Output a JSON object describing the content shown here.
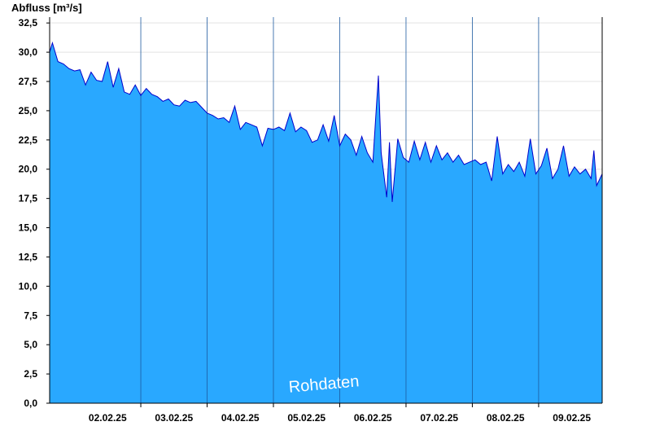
{
  "chart_data": {
    "type": "area",
    "ylabel": "Abfluss [m³/s]",
    "ylim": [
      0,
      33
    ],
    "yticks": [
      "0,0",
      "2,5",
      "5,0",
      "7,5",
      "10,0",
      "12,5",
      "15,0",
      "17,5",
      "20,0",
      "22,5",
      "25,0",
      "27,5",
      "30,0",
      "32,5"
    ],
    "ytick_values": [
      0,
      2.5,
      5,
      7.5,
      10,
      12.5,
      15,
      17.5,
      20,
      22.5,
      25,
      27.5,
      30,
      32.5
    ],
    "xlim": [
      "2025-02-01T15:00",
      "2025-02-09T23:00"
    ],
    "x_day_boundaries": [
      "2025-02-03T00:00",
      "2025-02-04T00:00",
      "2025-02-05T00:00",
      "2025-02-06T00:00",
      "2025-02-07T00:00",
      "2025-02-08T00:00",
      "2025-02-09T00:00"
    ],
    "xtick_labels": [
      {
        "date": "2025-02-02",
        "label": "02.02.25"
      },
      {
        "date": "2025-02-03",
        "label": "03.02.25"
      },
      {
        "date": "2025-02-04",
        "label": "04.02.25"
      },
      {
        "date": "2025-02-05",
        "label": "05.02.25"
      },
      {
        "date": "2025-02-06",
        "label": "06.02.25"
      },
      {
        "date": "2025-02-07",
        "label": "07.02.25"
      },
      {
        "date": "2025-02-08",
        "label": "08.02.25"
      },
      {
        "date": "2025-02-09",
        "label": "09.02.25"
      }
    ],
    "grid": true,
    "legend": "none",
    "fill_color": "#29A8FF",
    "line_color": "#0000CC",
    "annotation": "Rohdaten",
    "series": [
      {
        "points": [
          [
            "2025-02-01T15:00",
            30.0
          ],
          [
            "2025-02-01T16:00",
            30.8
          ],
          [
            "2025-02-01T18:00",
            29.2
          ],
          [
            "2025-02-01T20:00",
            29.0
          ],
          [
            "2025-02-01T22:00",
            28.6
          ],
          [
            "2025-02-02T00:00",
            28.4
          ],
          [
            "2025-02-02T02:00",
            28.5
          ],
          [
            "2025-02-02T04:00",
            27.2
          ],
          [
            "2025-02-02T06:00",
            28.3
          ],
          [
            "2025-02-02T08:00",
            27.6
          ],
          [
            "2025-02-02T10:00",
            27.5
          ],
          [
            "2025-02-02T12:00",
            29.2
          ],
          [
            "2025-02-02T14:00",
            27.0
          ],
          [
            "2025-02-02T16:00",
            28.6
          ],
          [
            "2025-02-02T18:00",
            26.6
          ],
          [
            "2025-02-02T20:00",
            26.4
          ],
          [
            "2025-02-02T22:00",
            27.2
          ],
          [
            "2025-02-03T00:00",
            26.3
          ],
          [
            "2025-02-03T02:00",
            26.9
          ],
          [
            "2025-02-03T04:00",
            26.4
          ],
          [
            "2025-02-03T06:00",
            26.2
          ],
          [
            "2025-02-03T08:00",
            25.8
          ],
          [
            "2025-02-03T10:00",
            26.0
          ],
          [
            "2025-02-03T12:00",
            25.5
          ],
          [
            "2025-02-03T14:00",
            25.4
          ],
          [
            "2025-02-03T16:00",
            25.9
          ],
          [
            "2025-02-03T18:00",
            25.7
          ],
          [
            "2025-02-03T20:00",
            25.8
          ],
          [
            "2025-02-03T22:00",
            25.3
          ],
          [
            "2025-02-04T00:00",
            24.8
          ],
          [
            "2025-02-04T02:00",
            24.6
          ],
          [
            "2025-02-04T04:00",
            24.3
          ],
          [
            "2025-02-04T06:00",
            24.4
          ],
          [
            "2025-02-04T08:00",
            24.0
          ],
          [
            "2025-02-04T10:00",
            25.4
          ],
          [
            "2025-02-04T12:00",
            23.4
          ],
          [
            "2025-02-04T14:00",
            24.0
          ],
          [
            "2025-02-04T16:00",
            23.8
          ],
          [
            "2025-02-04T18:00",
            23.6
          ],
          [
            "2025-02-04T20:00",
            22.0
          ],
          [
            "2025-02-04T22:00",
            23.5
          ],
          [
            "2025-02-05T00:00",
            23.4
          ],
          [
            "2025-02-05T02:00",
            23.6
          ],
          [
            "2025-02-05T04:00",
            23.3
          ],
          [
            "2025-02-05T06:00",
            24.8
          ],
          [
            "2025-02-05T08:00",
            23.2
          ],
          [
            "2025-02-05T10:00",
            23.6
          ],
          [
            "2025-02-05T12:00",
            23.3
          ],
          [
            "2025-02-05T14:00",
            22.3
          ],
          [
            "2025-02-05T16:00",
            22.5
          ],
          [
            "2025-02-05T18:00",
            23.8
          ],
          [
            "2025-02-05T20:00",
            22.4
          ],
          [
            "2025-02-05T22:00",
            24.6
          ],
          [
            "2025-02-06T00:00",
            22.0
          ],
          [
            "2025-02-06T02:00",
            23.0
          ],
          [
            "2025-02-06T04:00",
            22.5
          ],
          [
            "2025-02-06T06:00",
            21.2
          ],
          [
            "2025-02-06T08:00",
            22.8
          ],
          [
            "2025-02-06T10:00",
            21.4
          ],
          [
            "2025-02-06T12:00",
            20.6
          ],
          [
            "2025-02-06T14:00",
            28.0
          ],
          [
            "2025-02-06T15:00",
            21.4
          ],
          [
            "2025-02-06T17:00",
            17.6
          ],
          [
            "2025-02-06T18:00",
            22.3
          ],
          [
            "2025-02-06T19:00",
            17.2
          ],
          [
            "2025-02-06T21:00",
            22.6
          ],
          [
            "2025-02-06T23:00",
            21.0
          ],
          [
            "2025-02-07T01:00",
            20.6
          ],
          [
            "2025-02-07T03:00",
            22.4
          ],
          [
            "2025-02-07T05:00",
            20.8
          ],
          [
            "2025-02-07T07:00",
            22.3
          ],
          [
            "2025-02-07T09:00",
            20.6
          ],
          [
            "2025-02-07T11:00",
            22.0
          ],
          [
            "2025-02-07T13:00",
            20.8
          ],
          [
            "2025-02-07T15:00",
            21.4
          ],
          [
            "2025-02-07T17:00",
            20.6
          ],
          [
            "2025-02-07T19:00",
            21.2
          ],
          [
            "2025-02-07T21:00",
            20.4
          ],
          [
            "2025-02-07T23:00",
            20.6
          ],
          [
            "2025-02-08T01:00",
            20.8
          ],
          [
            "2025-02-08T03:00",
            20.4
          ],
          [
            "2025-02-08T05:00",
            20.6
          ],
          [
            "2025-02-08T07:00",
            19.0
          ],
          [
            "2025-02-08T09:00",
            22.8
          ],
          [
            "2025-02-08T11:00",
            19.6
          ],
          [
            "2025-02-08T13:00",
            20.4
          ],
          [
            "2025-02-08T15:00",
            19.8
          ],
          [
            "2025-02-08T17:00",
            20.6
          ],
          [
            "2025-02-08T19:00",
            19.4
          ],
          [
            "2025-02-08T21:00",
            22.6
          ],
          [
            "2025-02-08T23:00",
            19.6
          ],
          [
            "2025-02-09T01:00",
            20.3
          ],
          [
            "2025-02-09T03:00",
            21.8
          ],
          [
            "2025-02-09T05:00",
            19.2
          ],
          [
            "2025-02-09T07:00",
            20.0
          ],
          [
            "2025-02-09T09:00",
            22.0
          ],
          [
            "2025-02-09T11:00",
            19.4
          ],
          [
            "2025-02-09T13:00",
            20.2
          ],
          [
            "2025-02-09T15:00",
            19.6
          ],
          [
            "2025-02-09T17:00",
            20.0
          ],
          [
            "2025-02-09T19:00",
            19.2
          ],
          [
            "2025-02-09T20:00",
            21.6
          ],
          [
            "2025-02-09T21:00",
            18.6
          ],
          [
            "2025-02-09T23:00",
            19.6
          ]
        ]
      }
    ]
  }
}
